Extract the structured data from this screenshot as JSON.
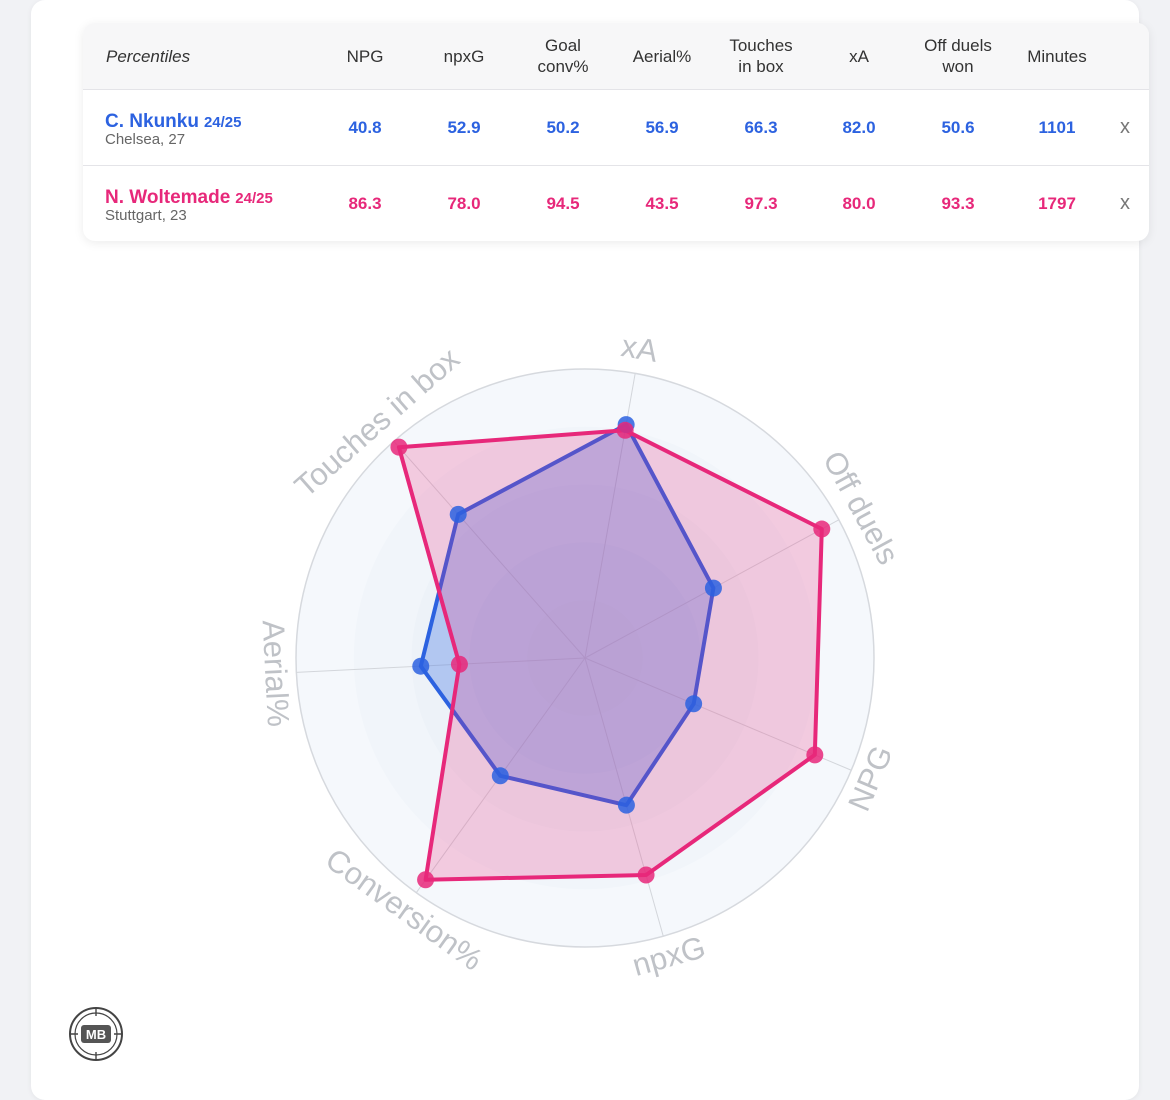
{
  "table": {
    "headers": [
      "Percentiles",
      "NPG",
      "npxG",
      "Goal\nconv%",
      "Aerial%",
      "Touches\nin box",
      "xA",
      "Off duels\nwon",
      "Minutes"
    ],
    "rows": [
      {
        "name": "C. Nkunku",
        "season": "24/25",
        "team": "Chelsea, 27",
        "values": [
          "40.8",
          "52.9",
          "50.2",
          "56.9",
          "66.3",
          "82.0",
          "50.6",
          "1101"
        ],
        "remove": "x",
        "color": "#2c62e0"
      },
      {
        "name": "N. Woltemade",
        "season": "24/25",
        "team": "Stuttgart, 23",
        "values": [
          "86.3",
          "78.0",
          "94.5",
          "43.5",
          "97.3",
          "80.0",
          "93.3",
          "1797"
        ],
        "remove": "x",
        "color": "#e7287a"
      }
    ]
  },
  "chart_data": {
    "type": "radar",
    "axes": [
      "xA",
      "Off duels",
      "NPG",
      "npxG",
      "Conversion%",
      "Aerial%",
      "Touches in box"
    ],
    "range": [
      0,
      100
    ],
    "series": [
      {
        "name": "C. Nkunku",
        "values": [
          82.0,
          50.6,
          40.8,
          52.9,
          50.2,
          56.9,
          66.3
        ],
        "color": "#2c62e0"
      },
      {
        "name": "N. Woltemade",
        "values": [
          80.0,
          93.3,
          86.3,
          78.0,
          94.5,
          43.5,
          97.3
        ],
        "color": "#e7287a"
      }
    ]
  },
  "logo": {
    "text": "MB"
  }
}
